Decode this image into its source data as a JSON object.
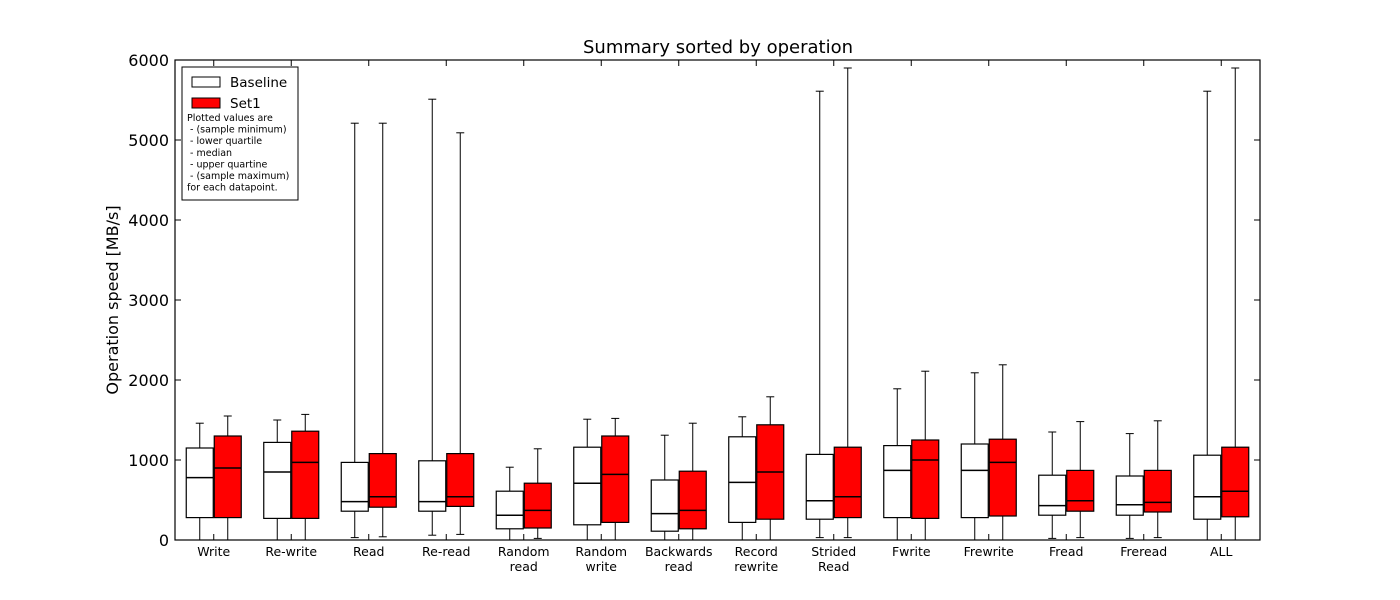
{
  "chart_data": {
    "type": "boxplot",
    "title": "Summary sorted by operation",
    "xlabel": "",
    "ylabel": "Operation speed [MB/s]",
    "ylim": [
      0,
      6000
    ],
    "yticks": [
      0,
      1000,
      2000,
      3000,
      4000,
      5000,
      6000
    ],
    "grid": false,
    "legend_position": "top-left",
    "categories": [
      [
        "Write"
      ],
      [
        "Re-write"
      ],
      [
        "Read"
      ],
      [
        "Re-read"
      ],
      [
        "Random",
        "read"
      ],
      [
        "Random",
        "write"
      ],
      [
        "Backwards",
        "read"
      ],
      [
        "Record",
        "rewrite"
      ],
      [
        "Strided",
        "Read"
      ],
      [
        "Fwrite"
      ],
      [
        "Frewrite"
      ],
      [
        "Fread"
      ],
      [
        "Freread"
      ],
      [
        "ALL"
      ]
    ],
    "series": [
      {
        "name": "Baseline",
        "color": "#ffffff",
        "boxes": [
          {
            "min": 0,
            "q1": 280,
            "median": 780,
            "q3": 1150,
            "max": 1460
          },
          {
            "min": 0,
            "q1": 270,
            "median": 850,
            "q3": 1220,
            "max": 1500
          },
          {
            "min": 30,
            "q1": 360,
            "median": 480,
            "q3": 970,
            "max": 5210
          },
          {
            "min": 60,
            "q1": 360,
            "median": 480,
            "q3": 990,
            "max": 5510
          },
          {
            "min": 0,
            "q1": 140,
            "median": 310,
            "q3": 610,
            "max": 910
          },
          {
            "min": 0,
            "q1": 190,
            "median": 710,
            "q3": 1160,
            "max": 1510
          },
          {
            "min": 0,
            "q1": 110,
            "median": 330,
            "q3": 750,
            "max": 1310
          },
          {
            "min": 0,
            "q1": 220,
            "median": 720,
            "q3": 1290,
            "max": 1540
          },
          {
            "min": 30,
            "q1": 260,
            "median": 490,
            "q3": 1070,
            "max": 5610
          },
          {
            "min": 0,
            "q1": 280,
            "median": 870,
            "q3": 1180,
            "max": 1890
          },
          {
            "min": 0,
            "q1": 280,
            "median": 870,
            "q3": 1200,
            "max": 2090
          },
          {
            "min": 20,
            "q1": 310,
            "median": 430,
            "q3": 810,
            "max": 1350
          },
          {
            "min": 20,
            "q1": 310,
            "median": 440,
            "q3": 800,
            "max": 1330
          },
          {
            "min": 0,
            "q1": 260,
            "median": 540,
            "q3": 1060,
            "max": 5610
          }
        ]
      },
      {
        "name": "Set1",
        "color": "#ff0000",
        "boxes": [
          {
            "min": 0,
            "q1": 280,
            "median": 900,
            "q3": 1300,
            "max": 1550
          },
          {
            "min": 0,
            "q1": 270,
            "median": 970,
            "q3": 1360,
            "max": 1570
          },
          {
            "min": 40,
            "q1": 410,
            "median": 540,
            "q3": 1080,
            "max": 5210
          },
          {
            "min": 70,
            "q1": 420,
            "median": 540,
            "q3": 1080,
            "max": 5090
          },
          {
            "min": 20,
            "q1": 150,
            "median": 370,
            "q3": 710,
            "max": 1140
          },
          {
            "min": 0,
            "q1": 220,
            "median": 820,
            "q3": 1300,
            "max": 1520
          },
          {
            "min": 0,
            "q1": 140,
            "median": 370,
            "q3": 860,
            "max": 1460
          },
          {
            "min": 0,
            "q1": 260,
            "median": 850,
            "q3": 1440,
            "max": 1790
          },
          {
            "min": 30,
            "q1": 280,
            "median": 540,
            "q3": 1160,
            "max": 5900
          },
          {
            "min": 0,
            "q1": 270,
            "median": 1000,
            "q3": 1250,
            "max": 2110
          },
          {
            "min": 0,
            "q1": 300,
            "median": 970,
            "q3": 1260,
            "max": 2190
          },
          {
            "min": 30,
            "q1": 360,
            "median": 490,
            "q3": 870,
            "max": 1480
          },
          {
            "min": 30,
            "q1": 350,
            "median": 470,
            "q3": 870,
            "max": 1490
          },
          {
            "min": 0,
            "q1": 290,
            "median": 610,
            "q3": 1160,
            "max": 5900
          }
        ]
      }
    ],
    "legend": {
      "entries": [
        "Baseline",
        "Set1"
      ],
      "note": [
        "Plotted values are",
        " - (sample minimum)",
        " - lower quartile",
        " - median",
        " - upper quartine",
        " - (sample maximum)",
        "for each datapoint."
      ]
    }
  }
}
